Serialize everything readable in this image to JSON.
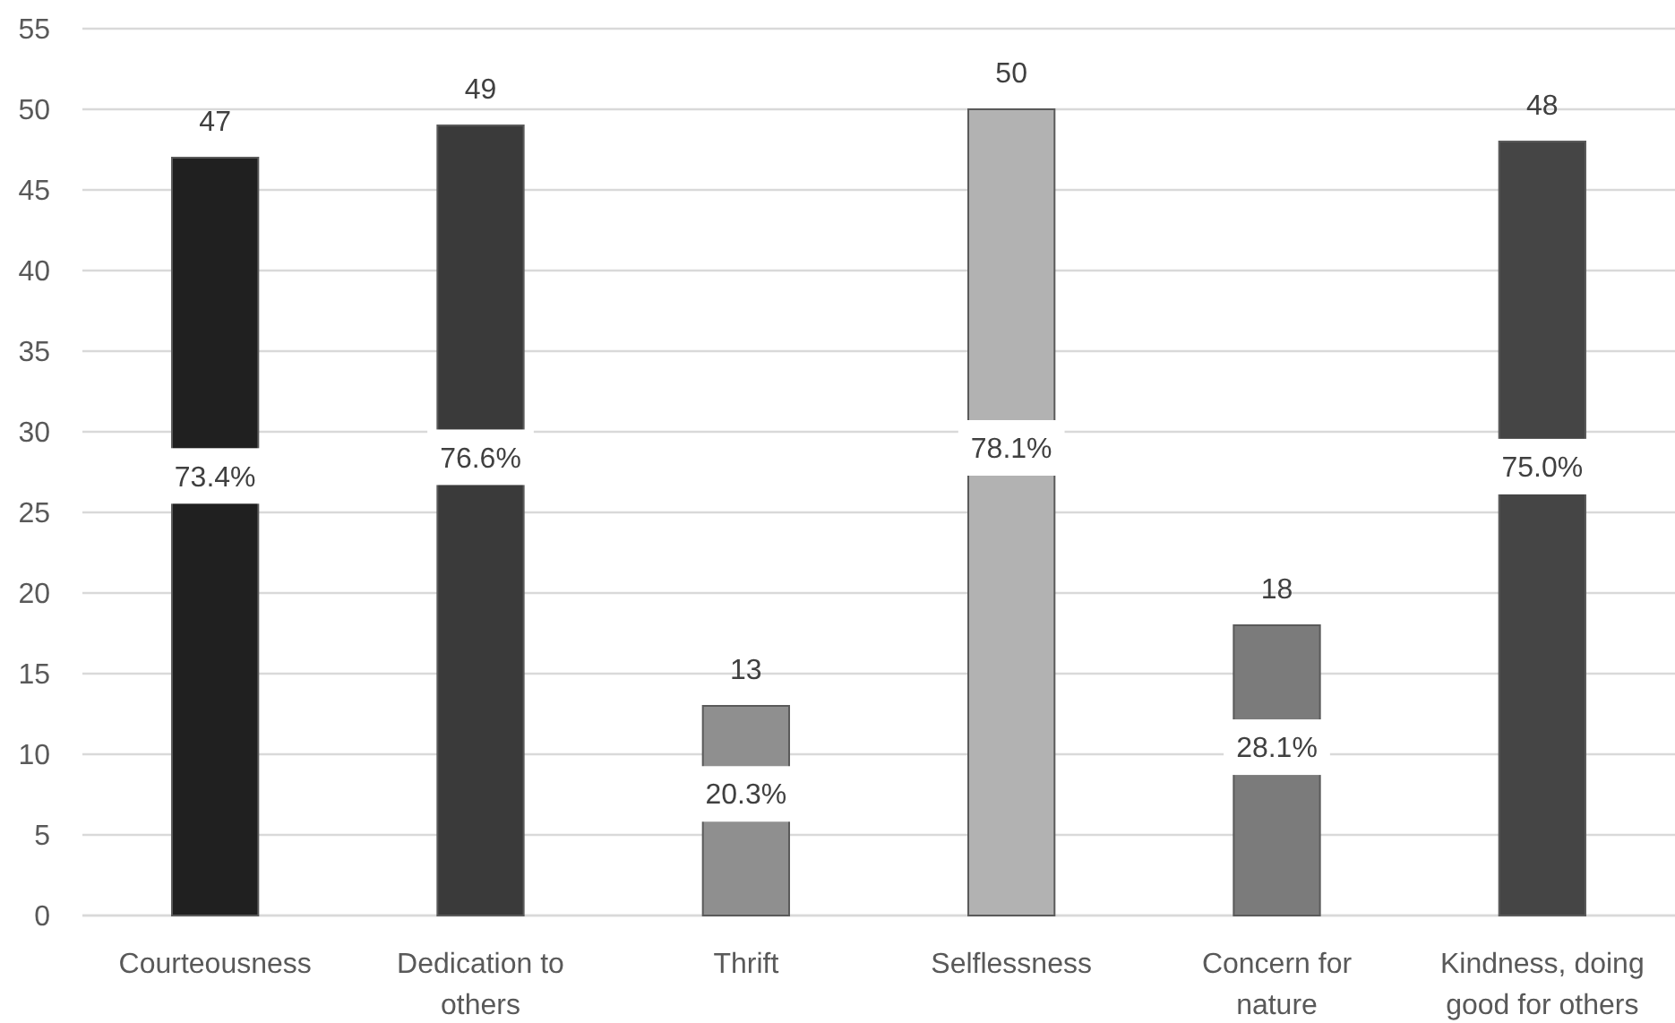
{
  "chart_data": {
    "type": "bar",
    "categories": [
      "Courteousness",
      "Dedication to others",
      "Thrift",
      "Selflessness",
      "Concern for nature",
      "Kindness, doing good for others"
    ],
    "values": [
      47,
      49,
      13,
      50,
      18,
      48
    ],
    "colors": [
      "#202020",
      "#3a3a3a",
      "#8f8f8f",
      "#b2b2b2",
      "#7b7b7b",
      "#454545"
    ],
    "ylim": [
      0,
      55
    ],
    "yticks": [
      0,
      5,
      10,
      15,
      20,
      25,
      30,
      35,
      40,
      45,
      50,
      55
    ],
    "grid": "y",
    "data_labels": true,
    "annotations": [
      "73.4%",
      "76.6%",
      "20.3%",
      "78.1%",
      "28.1%",
      "75.0%"
    ]
  }
}
